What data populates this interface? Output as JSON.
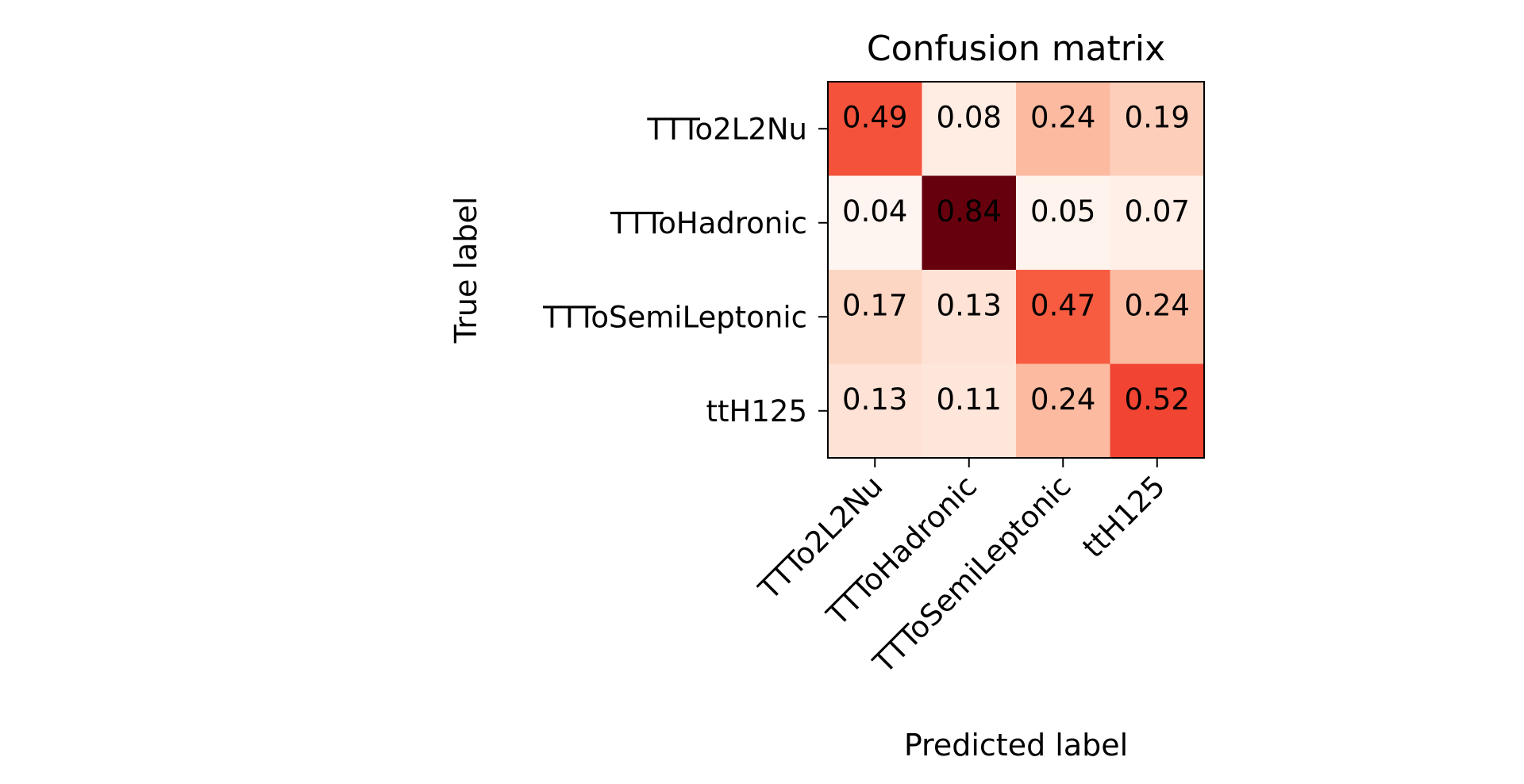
{
  "chart_data": {
    "type": "heatmap",
    "title": "Confusion matrix",
    "xlabel": "Predicted label",
    "ylabel": "True label",
    "x_categories": [
      "TTTo2L2Nu",
      "TTToHadronic",
      "TTToSemiLeptonic",
      "ttH125"
    ],
    "y_categories": [
      "TTTo2L2Nu",
      "TTToHadronic",
      "TTToSemiLeptonic",
      "ttH125"
    ],
    "values": [
      [
        0.49,
        0.08,
        0.24,
        0.19
      ],
      [
        0.04,
        0.84,
        0.05,
        0.07
      ],
      [
        0.17,
        0.13,
        0.47,
        0.24
      ],
      [
        0.13,
        0.11,
        0.24,
        0.52
      ]
    ],
    "colormap": "Reds",
    "colors": {
      "low": "#fff5f0",
      "high": "#67000d"
    },
    "grid": false,
    "legend": false
  }
}
